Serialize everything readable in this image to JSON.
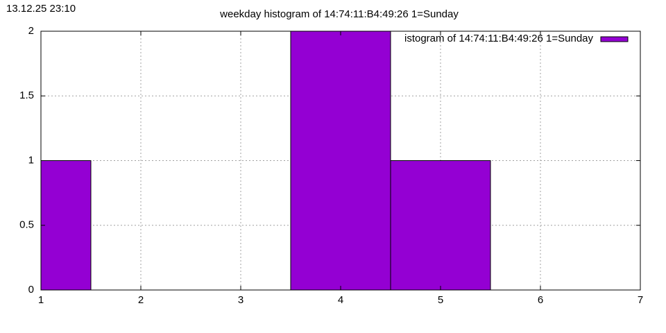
{
  "timestamp": "13.12.25 23:10",
  "chart_data": {
    "type": "histogram",
    "title": "weekday histogram of 14:74:11:B4:49:26 1=Sunday",
    "bins": [
      0.5,
      1.5,
      2.5,
      3.5,
      4.5,
      5.5,
      6.5,
      7.5
    ],
    "series": [
      {
        "name": "istogram of 14:74:11:B4:49:26 1=Sunday",
        "color": "#9400d3",
        "values": [
          1,
          0,
          0,
          2,
          1,
          0,
          0
        ]
      }
    ],
    "xlim": [
      1,
      7
    ],
    "xticks": [
      1,
      2,
      3,
      4,
      5,
      6,
      7
    ],
    "ylim": [
      0,
      2
    ],
    "yticks": [
      0,
      0.5,
      1,
      1.5,
      2
    ],
    "grid": true,
    "legend": "top-right"
  }
}
